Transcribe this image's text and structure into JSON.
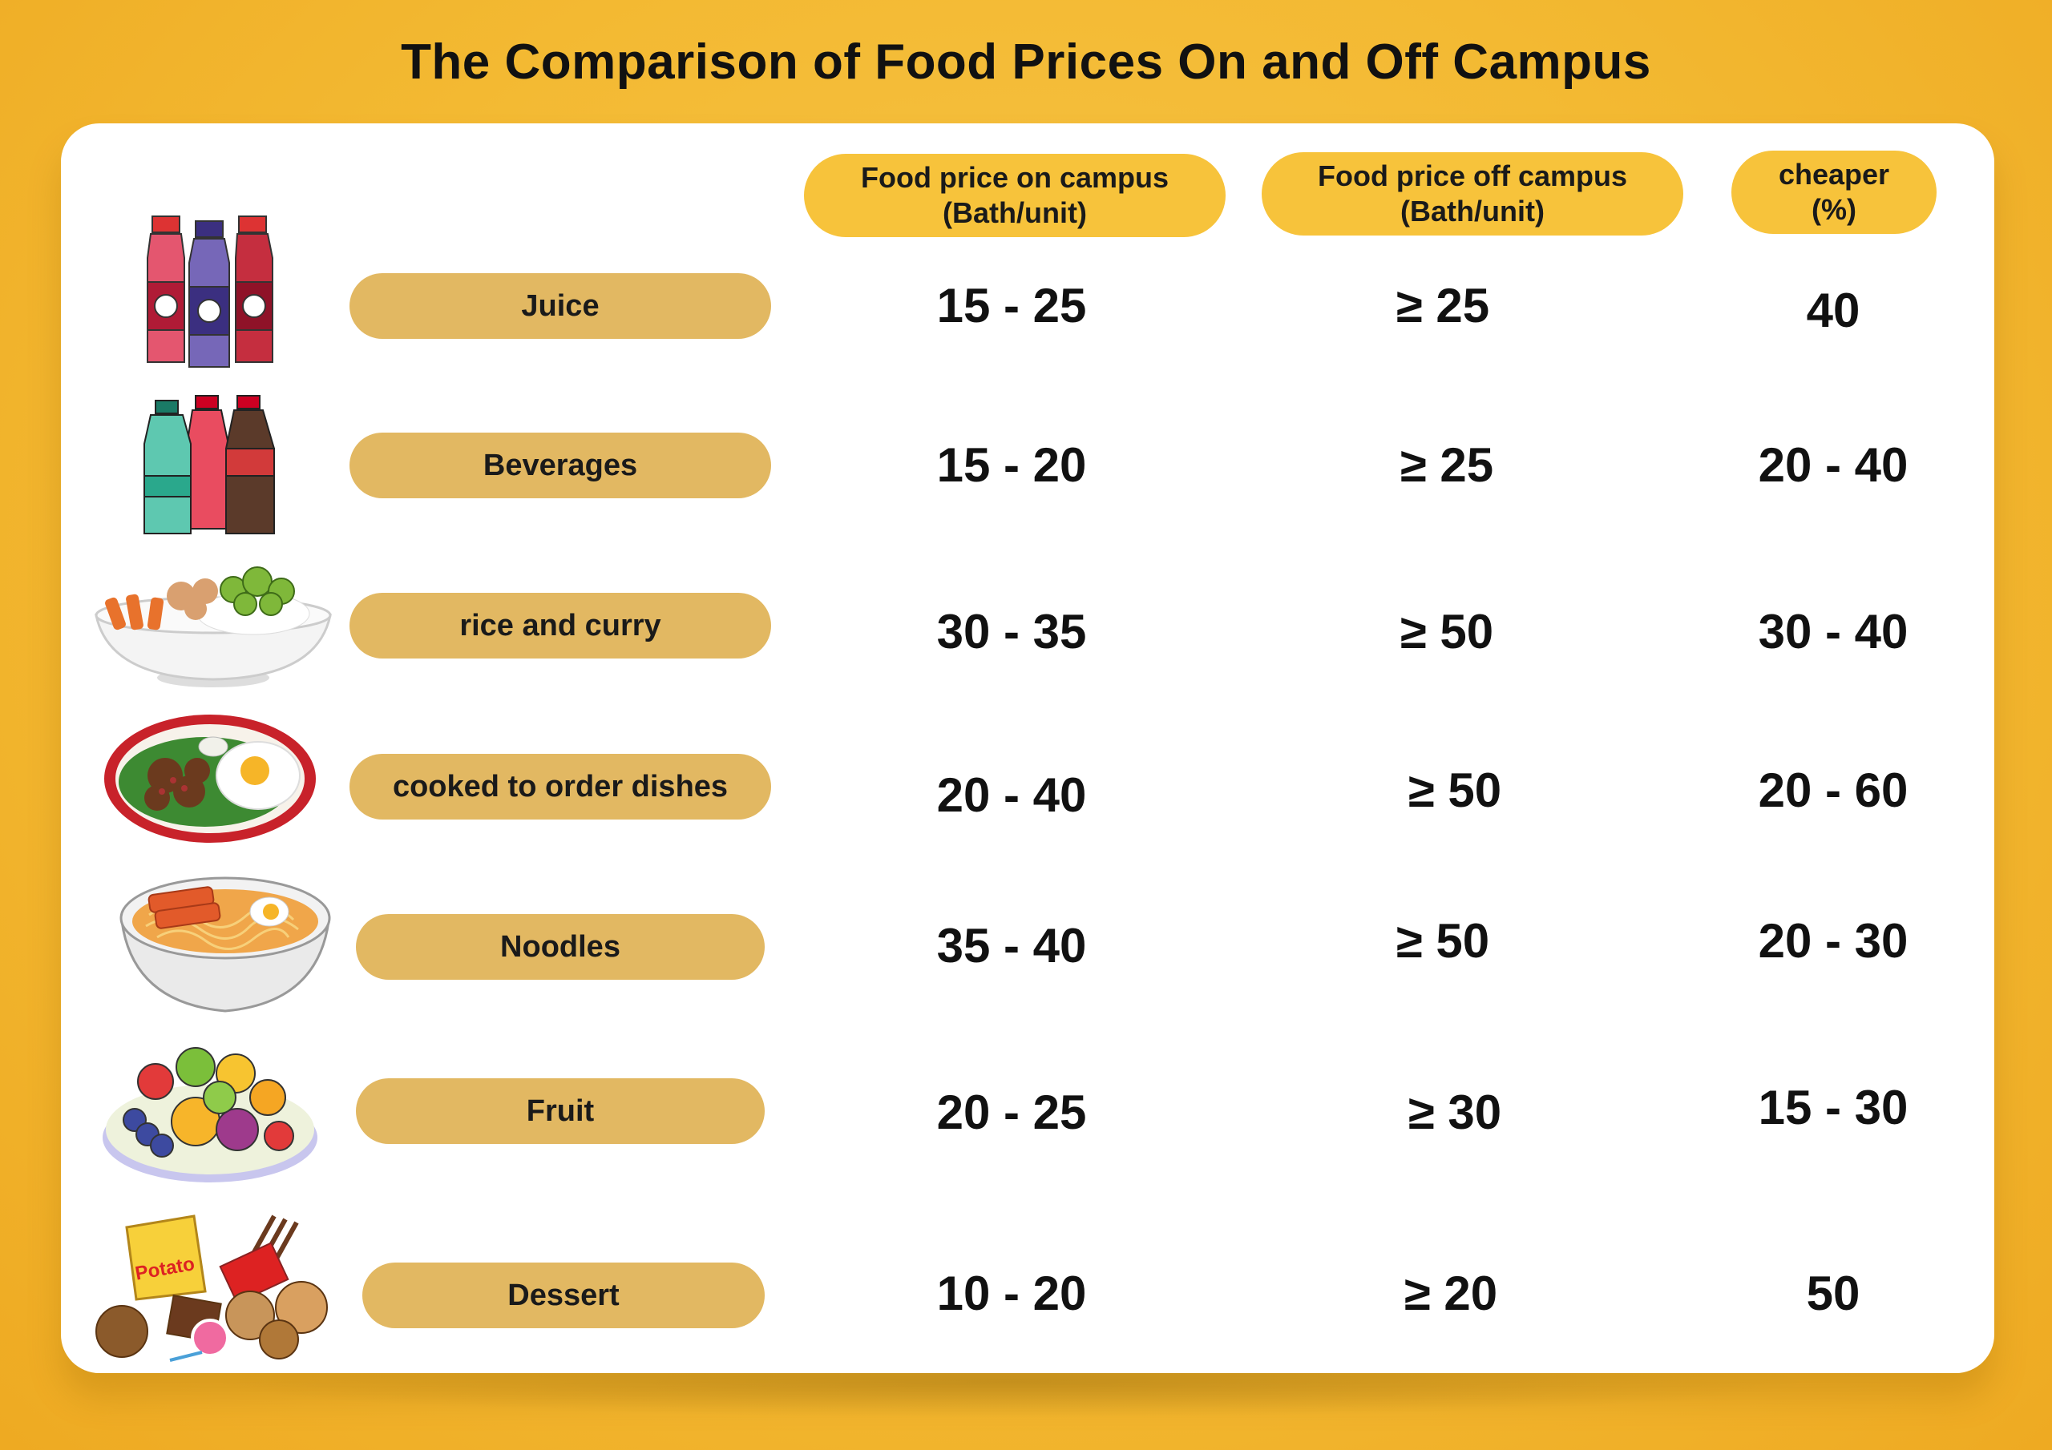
{
  "title": "The Comparison of Food Prices On and Off Campus",
  "headers": {
    "on_campus": "Food price on campus\n(Bath/unit)",
    "off_campus": "Food price off campus\n(Bath/unit)",
    "cheaper": "cheaper\n(%)"
  },
  "rows": [
    {
      "name": "Juice",
      "on": "15 - 25",
      "off": "≥  25",
      "cheaper": "40",
      "icon": "juice-bottles-icon"
    },
    {
      "name": "Beverages",
      "on": "15 - 20",
      "off": "≥  25",
      "cheaper": "20 - 40",
      "icon": "soda-bottles-icon"
    },
    {
      "name": "rice and curry",
      "on": "30 - 35",
      "off": "≥ 50",
      "cheaper": "30 - 40",
      "icon": "rice-curry-bowl-icon"
    },
    {
      "name": "cooked to order dishes",
      "on": "20 - 40",
      "off": "≥ 50",
      "cheaper": "20 - 60",
      "icon": "fried-egg-dish-icon"
    },
    {
      "name": "Noodles",
      "on": "35 - 40",
      "off": "≥ 50",
      "cheaper": "20 - 30",
      "icon": "noodle-bowl-icon"
    },
    {
      "name": "Fruit",
      "on": "20 - 25",
      "off": "≥ 30",
      "cheaper": "15 - 30",
      "icon": "fruit-plate-icon"
    },
    {
      "name": "Dessert",
      "on": "10 - 20",
      "off": "≥ 20",
      "cheaper": "50",
      "icon": "snacks-pile-icon"
    }
  ],
  "colors": {
    "background": "#f3b932",
    "header_pill": "#f7c33b",
    "label_pill": "#e2b862"
  }
}
